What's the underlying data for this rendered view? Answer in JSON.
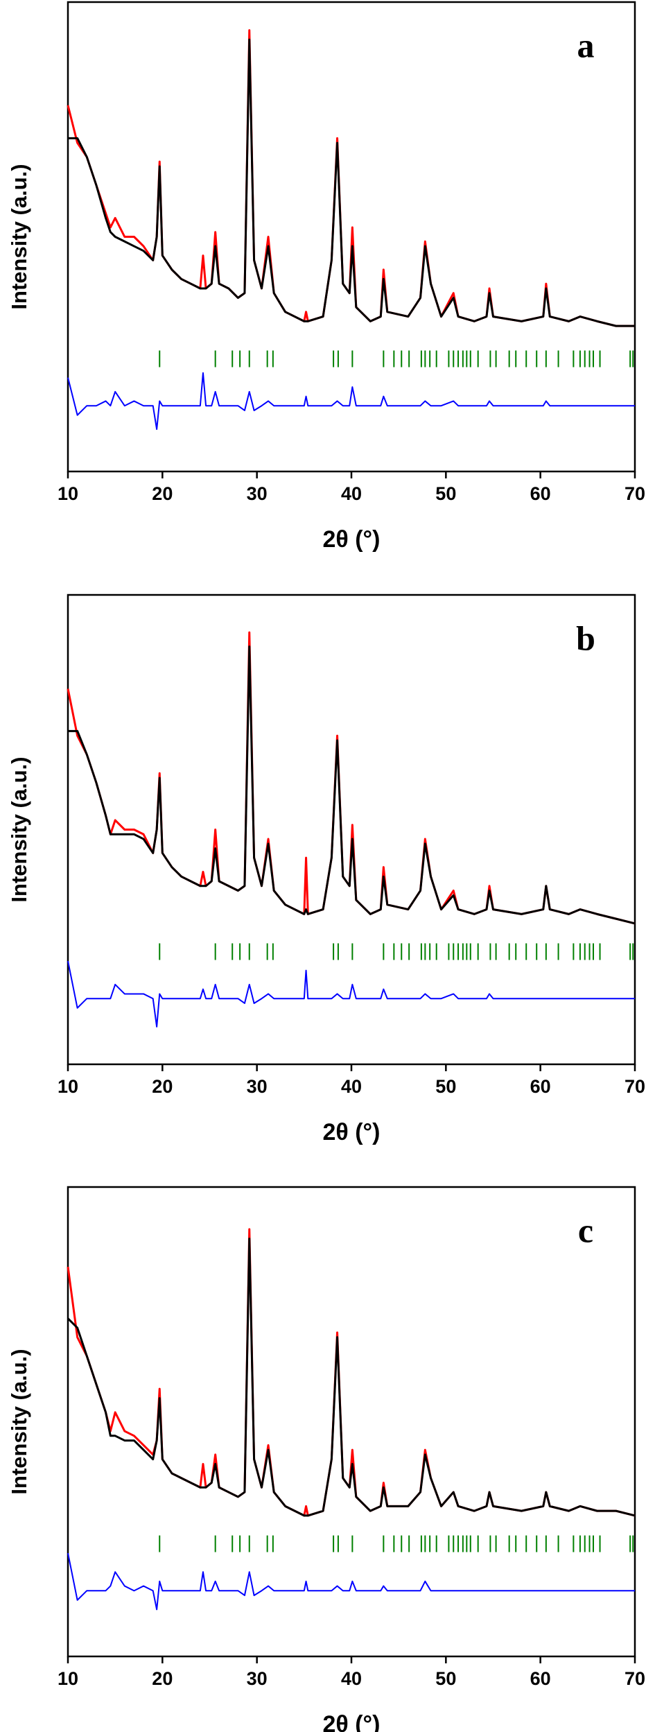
{
  "chart_data": [
    {
      "type": "line",
      "label": "a",
      "xlabel": "2θ (°)",
      "ylabel": "Intensity (a.u.)",
      "xlim": [
        10,
        70
      ],
      "xticks": [
        10,
        20,
        30,
        40,
        50,
        60,
        70
      ],
      "ylim": [
        0,
        100
      ],
      "x": [
        10,
        11,
        12,
        13,
        14,
        14.5,
        15,
        16,
        17,
        18,
        19,
        19.4,
        19.7,
        20,
        21,
        22,
        23,
        24,
        24.3,
        24.6,
        25.2,
        25.6,
        26,
        27,
        28,
        28.7,
        29.2,
        29.7,
        30.5,
        31.2,
        31.8,
        33,
        35,
        35.2,
        35.4,
        37,
        37.9,
        38.5,
        39.1,
        39.8,
        40.1,
        40.5,
        42,
        43.1,
        43.4,
        43.8,
        46,
        47.3,
        47.8,
        48.4,
        49.5,
        50.8,
        51.3,
        53,
        54.3,
        54.6,
        55,
        58,
        60.3,
        60.6,
        61,
        63,
        64.2,
        66,
        68,
        70
      ],
      "series": [
        {
          "color": "#ff0000",
          "values": [
            78,
            70,
            67,
            61,
            55,
            52,
            54,
            50,
            50,
            48,
            45,
            50,
            66,
            46,
            43,
            41,
            40,
            39,
            46,
            39,
            40,
            51,
            40,
            39,
            37,
            38,
            94,
            45,
            39,
            50,
            38,
            34,
            32,
            34,
            32,
            33,
            45,
            71,
            40,
            38,
            52,
            35,
            32,
            33,
            43,
            34,
            33,
            37,
            49,
            40,
            33,
            38,
            33,
            32,
            33,
            39,
            33,
            32,
            33,
            40,
            33,
            32,
            33,
            32,
            31,
            31
          ]
        },
        {
          "color": "#000000",
          "values": [
            71,
            71,
            67,
            61,
            54,
            51,
            50,
            49,
            48,
            47,
            45,
            50,
            65,
            46,
            43,
            41,
            40,
            39,
            39,
            39,
            40,
            48,
            40,
            39,
            37,
            38,
            92,
            45,
            39,
            48,
            38,
            34,
            32,
            32,
            32,
            33,
            45,
            70,
            40,
            38,
            48,
            35,
            32,
            33,
            41,
            34,
            33,
            37,
            48,
            40,
            33,
            37,
            33,
            32,
            33,
            38,
            33,
            32,
            33,
            39,
            33,
            32,
            33,
            32,
            31,
            31
          ]
        },
        {
          "color": "#0000ff",
          "values": [
            20,
            12,
            14,
            14,
            15,
            14,
            17,
            14,
            15,
            14,
            14,
            9,
            15,
            14,
            14,
            14,
            14,
            14,
            21,
            14,
            14,
            17,
            14,
            14,
            14,
            13,
            17,
            13,
            14,
            15,
            14,
            14,
            14,
            16,
            14,
            14,
            14,
            15,
            14,
            14,
            18,
            14,
            14,
            14,
            16,
            14,
            14,
            14,
            15,
            14,
            14,
            15,
            14,
            14,
            14,
            15,
            14,
            14,
            14,
            15,
            14,
            14,
            14,
            14,
            14,
            14
          ]
        }
      ],
      "bragg": {
        "color": "#008000",
        "x": [
          19.7,
          25.6,
          27.4,
          28.2,
          29.2,
          31.1,
          31.7,
          38.1,
          38.6,
          40.1,
          43.4,
          44.5,
          45.3,
          46.1,
          47.4,
          47.8,
          48.3,
          49.0,
          50.3,
          50.8,
          51.3,
          51.8,
          52.2,
          52.6,
          53.4,
          54.7,
          55.3,
          56.7,
          57.4,
          58.5,
          59.6,
          60.6,
          61.9,
          63.5,
          64.2,
          64.7,
          65.2,
          65.6,
          66.3,
          69.5,
          69.8
        ]
      }
    },
    {
      "type": "line",
      "label": "b",
      "xlabel": "2θ (°)",
      "ylabel": "Intensity (a.u.)",
      "xlim": [
        10,
        70
      ],
      "xticks": [
        10,
        20,
        30,
        40,
        50,
        60,
        70
      ],
      "ylim": [
        0,
        100
      ],
      "x": [
        10,
        11,
        12,
        13,
        14,
        14.5,
        15,
        16,
        17,
        18,
        19,
        19.4,
        19.7,
        20,
        21,
        22,
        23,
        24,
        24.3,
        24.6,
        25.2,
        25.6,
        26,
        27,
        28,
        28.7,
        29.2,
        29.7,
        30.5,
        31.2,
        31.8,
        33,
        35,
        35.2,
        35.4,
        37,
        37.9,
        38.5,
        39.1,
        39.8,
        40.1,
        40.5,
        42,
        43.1,
        43.4,
        43.8,
        46,
        47.3,
        47.8,
        48.4,
        49.5,
        50.8,
        51.3,
        53,
        54.3,
        54.6,
        55,
        58,
        60.3,
        60.6,
        61,
        63,
        64.2,
        66,
        68,
        70
      ],
      "series": [
        {
          "color": "#ff0000",
          "values": [
            80,
            70,
            66,
            60,
            53,
            49,
            52,
            50,
            50,
            49,
            45,
            50,
            62,
            45,
            42,
            40,
            39,
            38,
            41,
            38,
            39,
            50,
            39,
            38,
            37,
            38,
            92,
            44,
            38,
            48,
            37,
            34,
            32,
            44,
            32,
            33,
            44,
            70,
            40,
            38,
            51,
            35,
            32,
            33,
            42,
            34,
            33,
            37,
            48,
            40,
            33,
            37,
            33,
            32,
            33,
            38,
            33,
            32,
            33,
            38,
            33,
            32,
            33,
            32,
            31,
            30
          ]
        },
        {
          "color": "#000000",
          "values": [
            71,
            71,
            66,
            60,
            53,
            49,
            49,
            49,
            49,
            48,
            45,
            50,
            61,
            45,
            42,
            40,
            39,
            38,
            38,
            38,
            39,
            46,
            39,
            38,
            37,
            38,
            89,
            44,
            38,
            47,
            37,
            34,
            32,
            33,
            32,
            33,
            44,
            69,
            40,
            38,
            48,
            35,
            32,
            33,
            40,
            34,
            33,
            37,
            47,
            40,
            33,
            36,
            33,
            32,
            33,
            37,
            33,
            32,
            33,
            38,
            33,
            32,
            33,
            32,
            31,
            30
          ]
        },
        {
          "color": "#0000ff",
          "values": [
            22,
            12,
            14,
            14,
            14,
            14,
            17,
            15,
            15,
            15,
            14,
            8,
            15,
            14,
            14,
            14,
            14,
            14,
            16,
            14,
            14,
            17,
            14,
            14,
            14,
            13,
            17,
            13,
            14,
            15,
            14,
            14,
            14,
            20,
            14,
            14,
            14,
            15,
            14,
            14,
            17,
            14,
            14,
            14,
            16,
            14,
            14,
            14,
            15,
            14,
            14,
            15,
            14,
            14,
            14,
            15,
            14,
            14,
            14,
            14,
            14,
            14,
            14,
            14,
            14,
            14
          ]
        }
      ],
      "bragg": {
        "color": "#008000",
        "x": [
          19.7,
          25.6,
          27.4,
          28.2,
          29.2,
          31.1,
          31.7,
          38.1,
          38.6,
          40.1,
          43.4,
          44.5,
          45.3,
          46.1,
          47.4,
          47.8,
          48.3,
          49.0,
          50.3,
          50.8,
          51.3,
          51.8,
          52.2,
          52.6,
          53.4,
          54.7,
          55.3,
          56.7,
          57.4,
          58.5,
          59.6,
          60.6,
          61.9,
          63.5,
          64.2,
          64.7,
          65.2,
          65.6,
          66.3,
          69.5,
          69.8
        ]
      }
    },
    {
      "type": "line",
      "label": "c",
      "xlabel": "2θ (°)",
      "ylabel": "Intensity (a.u.)",
      "xlim": [
        10,
        70
      ],
      "xticks": [
        10,
        20,
        30,
        40,
        50,
        60,
        70
      ],
      "ylim": [
        0,
        100
      ],
      "x": [
        10,
        11,
        12,
        13,
        14,
        14.5,
        15,
        16,
        17,
        18,
        19,
        19.4,
        19.7,
        20,
        21,
        22,
        23,
        24,
        24.3,
        24.6,
        25.2,
        25.6,
        26,
        27,
        28,
        28.7,
        29.2,
        29.7,
        30.5,
        31.2,
        31.8,
        33,
        35,
        35.2,
        35.4,
        37,
        37.9,
        38.5,
        39.1,
        39.8,
        40.1,
        40.5,
        42,
        43.1,
        43.4,
        43.8,
        46,
        47.3,
        47.8,
        48.4,
        49.5,
        50.8,
        51.3,
        53,
        54.3,
        54.6,
        55,
        58,
        60.3,
        60.6,
        61,
        63,
        64.2,
        66,
        68,
        70
      ],
      "series": [
        {
          "color": "#ff0000",
          "values": [
            83,
            68,
            64,
            58,
            52,
            48,
            52,
            48,
            47,
            45,
            43,
            46,
            57,
            42,
            39,
            38,
            37,
            36,
            41,
            36,
            37,
            43,
            36,
            35,
            34,
            35,
            91,
            42,
            36,
            45,
            35,
            32,
            30,
            32,
            30,
            31,
            42,
            69,
            38,
            36,
            44,
            34,
            31,
            32,
            37,
            32,
            32,
            35,
            44,
            38,
            32,
            35,
            32,
            31,
            32,
            35,
            32,
            31,
            32,
            35,
            32,
            31,
            32,
            31,
            31,
            30
          ]
        },
        {
          "color": "#000000",
          "values": [
            72,
            70,
            64,
            58,
            52,
            47,
            47,
            46,
            46,
            44,
            42,
            46,
            55,
            42,
            39,
            38,
            37,
            36,
            36,
            36,
            37,
            41,
            36,
            35,
            34,
            35,
            89,
            42,
            36,
            44,
            35,
            32,
            30,
            30,
            30,
            31,
            42,
            68,
            38,
            36,
            41,
            34,
            31,
            32,
            36,
            32,
            32,
            35,
            43,
            38,
            32,
            35,
            32,
            31,
            32,
            35,
            32,
            31,
            32,
            35,
            32,
            31,
            32,
            31,
            31,
            30
          ]
        },
        {
          "color": "#0000ff",
          "values": [
            22,
            12,
            14,
            14,
            14,
            15,
            18,
            15,
            14,
            15,
            14,
            10,
            16,
            14,
            14,
            14,
            14,
            14,
            18,
            14,
            14,
            16,
            14,
            14,
            14,
            13,
            18,
            13,
            14,
            15,
            14,
            14,
            14,
            16,
            14,
            14,
            14,
            15,
            14,
            14,
            16,
            14,
            14,
            14,
            15,
            14,
            14,
            14,
            16,
            14,
            14,
            14,
            14,
            14,
            14,
            14,
            14,
            14,
            14,
            14,
            14,
            14,
            14,
            14,
            14,
            14
          ]
        }
      ],
      "bragg": {
        "color": "#008000",
        "x": [
          19.7,
          25.6,
          27.4,
          28.2,
          29.2,
          31.1,
          31.7,
          38.1,
          38.6,
          40.1,
          43.4,
          44.5,
          45.3,
          46.1,
          47.4,
          47.8,
          48.3,
          49.0,
          50.3,
          50.8,
          51.3,
          51.8,
          52.2,
          52.6,
          53.4,
          54.7,
          55.3,
          56.7,
          57.4,
          58.5,
          59.6,
          60.6,
          61.9,
          63.5,
          64.2,
          64.7,
          65.2,
          65.6,
          66.3,
          69.5,
          69.8
        ]
      }
    }
  ]
}
